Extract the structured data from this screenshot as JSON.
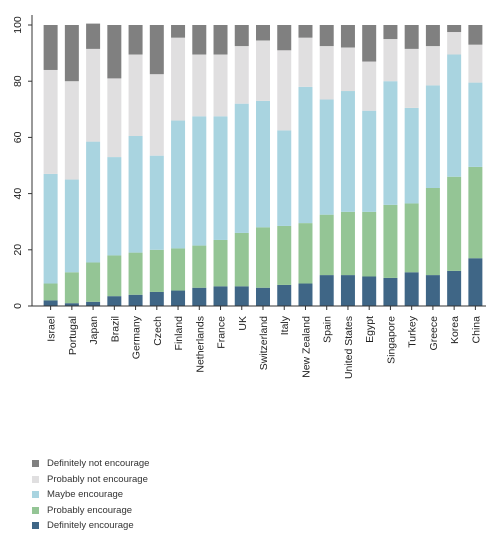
{
  "chart_data": {
    "type": "bar",
    "stacked": true,
    "orientation": "vertical",
    "categories": [
      "Israel",
      "Portugal",
      "Japan",
      "Brazil",
      "Germany",
      "Czech",
      "Finland",
      "Netherlands",
      "France",
      "UK",
      "Switzerland",
      "Italy",
      "New Zealand",
      "Spain",
      "United States",
      "Egypt",
      "Singapore",
      "Turkey",
      "Greece",
      "Korea",
      "China"
    ],
    "series": [
      {
        "name": "Definitely encourage",
        "color": "#3f6686",
        "values": [
          2,
          1,
          1.5,
          3.5,
          4,
          5,
          5.5,
          6.5,
          7,
          7,
          6.5,
          7.5,
          8,
          11,
          11,
          10.5,
          10,
          12,
          11,
          12.5,
          17
        ]
      },
      {
        "name": "Probably encourage",
        "color": "#94c595",
        "values": [
          6,
          11,
          14,
          14.5,
          15,
          15,
          15,
          15,
          16.5,
          19,
          21.5,
          21,
          21.5,
          21.5,
          22.5,
          23,
          26,
          24.5,
          31,
          33.5,
          32.5
        ]
      },
      {
        "name": "Maybe encourage",
        "color": "#a9d4e0",
        "values": [
          39,
          33,
          43,
          35,
          41.5,
          33.5,
          45.5,
          46,
          44,
          46,
          45,
          34,
          48.5,
          41,
          43,
          36,
          44,
          34,
          36.5,
          43.5,
          30
        ]
      },
      {
        "name": "Probably not encourage",
        "color": "#e0dfe0",
        "values": [
          37,
          35,
          33,
          28,
          29,
          29,
          29.5,
          22,
          22,
          20.5,
          21.5,
          28.5,
          17.5,
          19,
          15.5,
          17.5,
          15,
          21,
          14,
          8,
          13.5
        ]
      },
      {
        "name": "Definitely not encourage",
        "color": "#808080",
        "values": [
          16,
          20,
          9,
          19,
          10.5,
          17.5,
          4.5,
          10.5,
          10.5,
          7.5,
          5.5,
          9,
          4.5,
          7.5,
          8,
          13,
          5,
          8.5,
          7.5,
          2.5,
          7
        ]
      }
    ],
    "yticks": [
      0,
      20,
      40,
      60,
      80,
      100
    ],
    "ylim": [
      0,
      100
    ],
    "grid": false,
    "legend_position": "bottom-left",
    "legend_order": [
      "Definitely not encourage",
      "Probably not encourage",
      "Maybe encourage",
      "Probably encourage",
      "Definitely encourage"
    ]
  }
}
